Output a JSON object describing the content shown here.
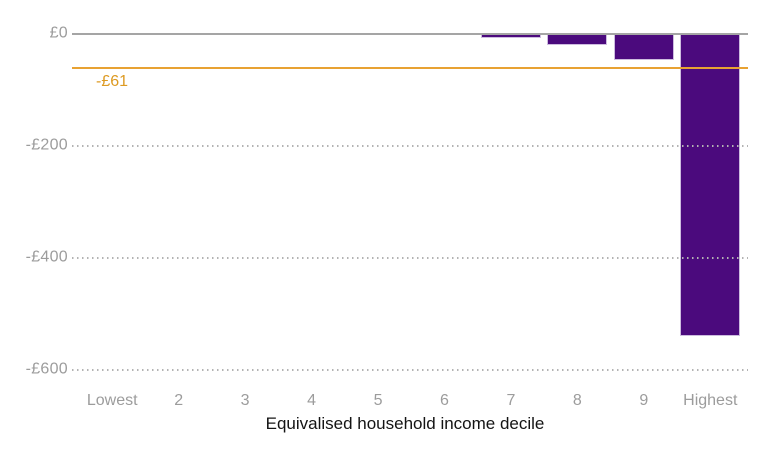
{
  "chart_data": {
    "type": "bar",
    "title": "",
    "categories": [
      "Lowest",
      "2",
      "3",
      "4",
      "5",
      "6",
      "7",
      "8",
      "9",
      "Highest"
    ],
    "values": [
      0,
      0,
      0,
      0,
      0,
      0,
      -8,
      -19,
      -46,
      -540
    ],
    "xlabel": "Equivalised household income decile",
    "ylabel": "",
    "ylim": [
      -600,
      0
    ],
    "currency": "GBP",
    "yticks": [
      {
        "label": "£0",
        "value": 0
      },
      {
        "label": "-£200",
        "value": -200
      },
      {
        "label": "-£400",
        "value": -400
      },
      {
        "label": "-£600",
        "value": -600
      }
    ],
    "average_line": {
      "value": -61,
      "label": "-£61"
    },
    "legend_position": "none",
    "grid": "horizontal-dotted",
    "colors": {
      "bar": "#4b0a7d",
      "bar_border": "#cdbcdf",
      "average_line": "#e8a232",
      "average_label": "#dd9a22",
      "axis_text": "#9c9c9c",
      "title_text": "#141414",
      "zero_line": "#a5a5a5",
      "grid_dots": "#b3b3b3",
      "background": "#ffffff"
    }
  }
}
